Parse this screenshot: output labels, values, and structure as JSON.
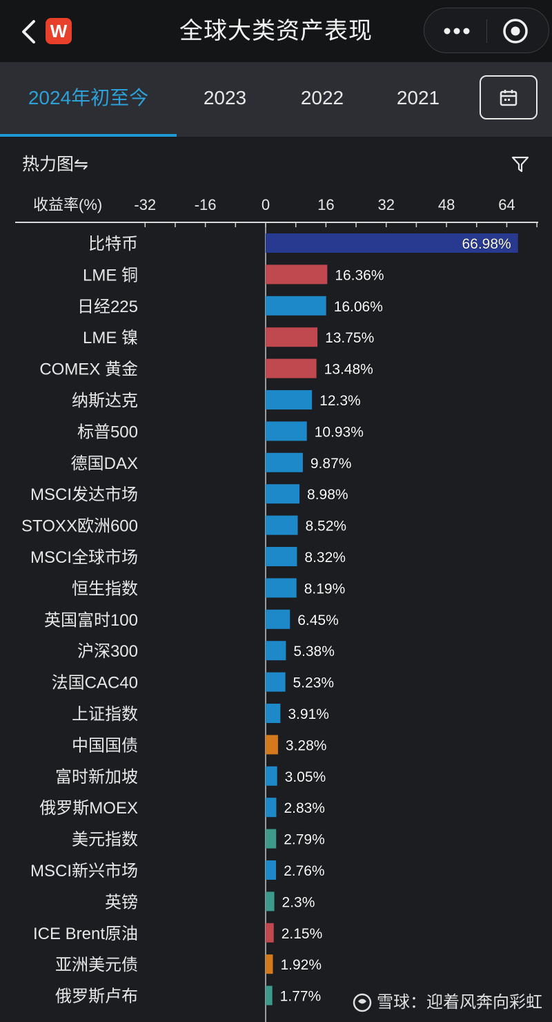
{
  "header": {
    "title": "全球大类资产表现",
    "logo_letter": "W",
    "back_icon": "chevron-left-icon",
    "more_icon": "more-dots-icon",
    "target_icon": "target-icon"
  },
  "tabs": [
    {
      "label": "2024年初至今",
      "active": true
    },
    {
      "label": "2023",
      "active": false
    },
    {
      "label": "2022",
      "active": false
    },
    {
      "label": "2021",
      "active": false
    }
  ],
  "calendar_icon": "calendar-icon",
  "subheader": {
    "heatmap_label": "热力图⇋",
    "filter_icon": "filter-icon"
  },
  "watermark": "雪球：迎着风奔向彩虹",
  "colors": {
    "crypto": "#283a8f",
    "metal": "#c0494f",
    "equity": "#1e89c8",
    "bond": "#d47a1d",
    "currency": "#3e9b8c",
    "accent": "#1d9ad6"
  },
  "chart_data": {
    "type": "bar",
    "orientation": "horizontal",
    "axis_label": "收益率(%)",
    "xlim": [
      -40,
      72
    ],
    "ticks": [
      -32,
      -16,
      0,
      16,
      32,
      48,
      64
    ],
    "bars": [
      {
        "label": "比特币",
        "value": 66.98,
        "value_label": "66.98%",
        "color": "#283a8f"
      },
      {
        "label": "LME 铜",
        "value": 16.36,
        "value_label": "16.36%",
        "color": "#c0494f"
      },
      {
        "label": "日经225",
        "value": 16.06,
        "value_label": "16.06%",
        "color": "#1e89c8"
      },
      {
        "label": "LME 镍",
        "value": 13.75,
        "value_label": "13.75%",
        "color": "#c0494f"
      },
      {
        "label": "COMEX 黄金",
        "value": 13.48,
        "value_label": "13.48%",
        "color": "#c0494f"
      },
      {
        "label": "纳斯达克",
        "value": 12.3,
        "value_label": "12.3%",
        "color": "#1e89c8"
      },
      {
        "label": "标普500",
        "value": 10.93,
        "value_label": "10.93%",
        "color": "#1e89c8"
      },
      {
        "label": "德国DAX",
        "value": 9.87,
        "value_label": "9.87%",
        "color": "#1e89c8"
      },
      {
        "label": "MSCI发达市场",
        "value": 8.98,
        "value_label": "8.98%",
        "color": "#1e89c8"
      },
      {
        "label": "STOXX欧洲600",
        "value": 8.52,
        "value_label": "8.52%",
        "color": "#1e89c8"
      },
      {
        "label": "MSCI全球市场",
        "value": 8.32,
        "value_label": "8.32%",
        "color": "#1e89c8"
      },
      {
        "label": "恒生指数",
        "value": 8.19,
        "value_label": "8.19%",
        "color": "#1e89c8"
      },
      {
        "label": "英国富时100",
        "value": 6.45,
        "value_label": "6.45%",
        "color": "#1e89c8"
      },
      {
        "label": "沪深300",
        "value": 5.38,
        "value_label": "5.38%",
        "color": "#1e89c8"
      },
      {
        "label": "法国CAC40",
        "value": 5.23,
        "value_label": "5.23%",
        "color": "#1e89c8"
      },
      {
        "label": "上证指数",
        "value": 3.91,
        "value_label": "3.91%",
        "color": "#1e89c8"
      },
      {
        "label": "中国国债",
        "value": 3.28,
        "value_label": "3.28%",
        "color": "#d47a1d"
      },
      {
        "label": "富时新加坡",
        "value": 3.05,
        "value_label": "3.05%",
        "color": "#1e89c8"
      },
      {
        "label": "俄罗斯MOEX",
        "value": 2.83,
        "value_label": "2.83%",
        "color": "#1e89c8"
      },
      {
        "label": "美元指数",
        "value": 2.79,
        "value_label": "2.79%",
        "color": "#3e9b8c"
      },
      {
        "label": "MSCI新兴市场",
        "value": 2.76,
        "value_label": "2.76%",
        "color": "#1e89c8"
      },
      {
        "label": "英镑",
        "value": 2.3,
        "value_label": "2.3%",
        "color": "#3e9b8c"
      },
      {
        "label": "ICE Brent原油",
        "value": 2.15,
        "value_label": "2.15%",
        "color": "#c0494f"
      },
      {
        "label": "亚洲美元债",
        "value": 1.92,
        "value_label": "1.92%",
        "color": "#d47a1d"
      },
      {
        "label": "俄罗斯卢布",
        "value": 1.77,
        "value_label": "1.77%",
        "color": "#3e9b8c"
      }
    ]
  }
}
